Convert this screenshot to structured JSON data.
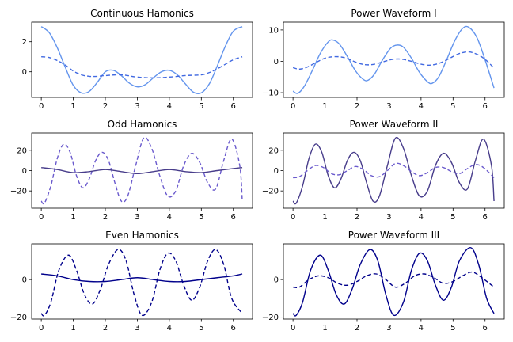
{
  "chart_data": [
    {
      "type": "line",
      "title": "Continuous Hamonics",
      "xlim": [
        -0.3,
        6.6
      ],
      "ylim": [
        -1.7,
        3.3
      ],
      "xticks": [
        0,
        1,
        2,
        3,
        4,
        5,
        6
      ],
      "yticks": [
        0,
        2
      ],
      "series": [
        {
          "style": "solid",
          "color": "#6495ed",
          "x": [
            0,
            0.25,
            0.5,
            0.75,
            1.0,
            1.25,
            1.5,
            1.75,
            2.0,
            2.25,
            2.5,
            2.75,
            3.0,
            3.25,
            3.5,
            3.75,
            4.0,
            4.25,
            4.5,
            4.75,
            5.0,
            5.25,
            5.5,
            5.75,
            6.0,
            6.28
          ],
          "y": [
            3.0,
            2.6,
            1.6,
            0.3,
            -0.9,
            -1.4,
            -1.3,
            -0.7,
            0.0,
            0.1,
            -0.25,
            -0.75,
            -1.0,
            -0.85,
            -0.4,
            0.0,
            0.1,
            -0.2,
            -0.8,
            -1.35,
            -1.4,
            -0.8,
            0.4,
            1.7,
            2.7,
            3.0
          ]
        },
        {
          "style": "dashed",
          "color": "#4169e1",
          "x": [
            0,
            0.25,
            0.5,
            0.75,
            1.0,
            1.25,
            1.5,
            1.75,
            2.0,
            2.5,
            3.0,
            3.5,
            4.0,
            4.5,
            5.0,
            5.25,
            5.5,
            5.75,
            6.0,
            6.28
          ],
          "y": [
            1.0,
            0.95,
            0.75,
            0.45,
            0.05,
            -0.2,
            -0.3,
            -0.3,
            -0.25,
            -0.2,
            -0.35,
            -0.4,
            -0.35,
            -0.25,
            -0.2,
            -0.05,
            0.2,
            0.5,
            0.8,
            1.0
          ]
        }
      ]
    },
    {
      "type": "line",
      "title": "Power Waveform I",
      "xlim": [
        -0.3,
        6.6
      ],
      "ylim": [
        -11.5,
        12.5
      ],
      "xticks": [
        0,
        1,
        2,
        3,
        4,
        5,
        6
      ],
      "yticks": [
        -10,
        0,
        10
      ],
      "series": [
        {
          "style": "solid",
          "color": "#6495ed",
          "x": [
            0,
            0.15,
            0.35,
            0.6,
            0.85,
            1.1,
            1.25,
            1.45,
            1.7,
            1.95,
            2.2,
            2.35,
            2.55,
            2.8,
            3.05,
            3.25,
            3.45,
            3.7,
            3.95,
            4.2,
            4.35,
            4.55,
            4.8,
            5.05,
            5.3,
            5.5,
            5.75,
            6.0,
            6.28
          ],
          "y": [
            -9.5,
            -10.2,
            -8.0,
            -3.0,
            2.5,
            6.2,
            6.8,
            5.5,
            1.5,
            -3.0,
            -5.8,
            -6.0,
            -4.0,
            0.5,
            4.2,
            5.2,
            4.5,
            1.0,
            -3.5,
            -6.5,
            -7.0,
            -5.0,
            0.5,
            6.5,
            10.5,
            10.8,
            7.5,
            0.5,
            -8.5
          ]
        },
        {
          "style": "dashed",
          "color": "#4169e1",
          "x": [
            0,
            0.2,
            0.45,
            0.75,
            1.0,
            1.3,
            1.6,
            1.9,
            2.2,
            2.5,
            2.8,
            3.1,
            3.4,
            3.7,
            4.0,
            4.3,
            4.6,
            4.9,
            5.2,
            5.5,
            5.8,
            6.05,
            6.28
          ],
          "y": [
            -2.0,
            -2.5,
            -1.8,
            -0.2,
            1.0,
            1.5,
            1.2,
            0.0,
            -1.0,
            -1.0,
            -0.2,
            0.6,
            0.7,
            0.0,
            -0.9,
            -1.2,
            -0.5,
            1.0,
            2.5,
            3.0,
            2.0,
            0.2,
            -2.2
          ]
        }
      ]
    },
    {
      "type": "line",
      "title": "Odd Hamonics",
      "xlim": [
        -0.3,
        6.6
      ],
      "ylim": [
        -37,
        37
      ],
      "xticks": [
        0,
        1,
        2,
        3,
        4,
        5,
        6
      ],
      "yticks": [
        -20,
        0,
        20
      ],
      "series": [
        {
          "style": "dashed",
          "color": "#6a5acd",
          "x": [
            0,
            0.1,
            0.3,
            0.5,
            0.7,
            0.9,
            1.1,
            1.3,
            1.5,
            1.7,
            1.9,
            2.1,
            2.3,
            2.5,
            2.7,
            2.95,
            3.2,
            3.45,
            3.7,
            3.95,
            4.2,
            4.45,
            4.7,
            4.95,
            5.2,
            5.45,
            5.7,
            5.95,
            6.2,
            6.28
          ],
          "y": [
            -30,
            -32,
            -15,
            12,
            26,
            18,
            -5,
            -17,
            -8,
            10,
            18,
            10,
            -12,
            -30,
            -25,
            5,
            32,
            22,
            -5,
            -25,
            -20,
            5,
            17,
            8,
            -12,
            -18,
            10,
            31,
            5,
            -30
          ]
        },
        {
          "style": "solid",
          "color": "#483d8b",
          "x": [
            0,
            0.5,
            1.0,
            1.5,
            2.0,
            2.5,
            3.0,
            3.5,
            4.0,
            4.5,
            5.0,
            5.5,
            6.0,
            6.28
          ],
          "y": [
            3,
            1,
            -2,
            -1,
            1,
            -1,
            -3,
            -1,
            1,
            -1,
            -2,
            0,
            2,
            3
          ]
        }
      ]
    },
    {
      "type": "line",
      "title": "Power Waveform II",
      "xlim": [
        -0.3,
        6.6
      ],
      "ylim": [
        -37,
        37
      ],
      "xticks": [
        0,
        1,
        2,
        3,
        4,
        5,
        6
      ],
      "yticks": [
        -20,
        0,
        20
      ],
      "series": [
        {
          "style": "solid",
          "color": "#483d8b",
          "x": [
            0,
            0.1,
            0.3,
            0.5,
            0.7,
            0.9,
            1.1,
            1.3,
            1.5,
            1.7,
            1.9,
            2.1,
            2.3,
            2.5,
            2.7,
            2.95,
            3.2,
            3.45,
            3.7,
            3.95,
            4.2,
            4.45,
            4.7,
            4.95,
            5.2,
            5.45,
            5.7,
            5.95,
            6.2,
            6.28
          ],
          "y": [
            -30,
            -32,
            -15,
            12,
            26,
            18,
            -5,
            -17,
            -8,
            10,
            18,
            10,
            -12,
            -30,
            -25,
            5,
            32,
            22,
            -5,
            -25,
            -20,
            5,
            17,
            8,
            -12,
            -18,
            10,
            31,
            5,
            -30
          ]
        },
        {
          "style": "dashed",
          "color": "#6a5acd",
          "x": [
            0,
            0.2,
            0.45,
            0.7,
            0.95,
            1.2,
            1.45,
            1.7,
            1.95,
            2.2,
            2.45,
            2.7,
            2.95,
            3.2,
            3.45,
            3.7,
            3.95,
            4.2,
            4.45,
            4.7,
            4.95,
            5.2,
            5.45,
            5.7,
            5.95,
            6.28
          ],
          "y": [
            -7,
            -6,
            0,
            5,
            3,
            -3,
            -4,
            0,
            4,
            1,
            -5,
            -6,
            0,
            7,
            5,
            -1,
            -5,
            -2,
            3,
            3,
            -1,
            -3,
            2,
            6,
            3,
            -7
          ]
        }
      ]
    },
    {
      "type": "line",
      "title": "Even Hamonics",
      "xlim": [
        -0.3,
        6.6
      ],
      "ylim": [
        -21,
        19
      ],
      "xticks": [
        0,
        1,
        2,
        3,
        4,
        5,
        6
      ],
      "yticks": [
        -20,
        0
      ],
      "series": [
        {
          "style": "dashed",
          "color": "#00008b",
          "x": [
            0,
            0.1,
            0.3,
            0.55,
            0.85,
            1.1,
            1.35,
            1.6,
            1.85,
            2.1,
            2.4,
            2.65,
            2.9,
            3.15,
            3.45,
            3.7,
            3.95,
            4.2,
            4.45,
            4.7,
            4.95,
            5.2,
            5.45,
            5.7,
            5.95,
            6.28
          ],
          "y": [
            -18,
            -19,
            -12,
            5,
            13,
            5,
            -8,
            -13,
            -5,
            8,
            16,
            10,
            -8,
            -19,
            -12,
            5,
            14,
            10,
            -3,
            -11,
            -4,
            10,
            16,
            8,
            -10,
            -18
          ]
        },
        {
          "style": "solid",
          "color": "#00008b",
          "x": [
            0,
            0.5,
            1.0,
            1.5,
            2.0,
            2.5,
            3.0,
            3.5,
            4.0,
            4.5,
            5.0,
            5.5,
            6.0,
            6.28
          ],
          "y": [
            3,
            2,
            0,
            -1,
            -1,
            0,
            1,
            0,
            -1,
            -1,
            0,
            1,
            2,
            3
          ]
        }
      ]
    },
    {
      "type": "line",
      "title": "Power Waveform III",
      "xlim": [
        -0.3,
        6.6
      ],
      "ylim": [
        -21,
        19
      ],
      "xticks": [
        0,
        1,
        2,
        3,
        4,
        5,
        6
      ],
      "yticks": [
        -20,
        0
      ],
      "series": [
        {
          "style": "solid",
          "color": "#00008b",
          "x": [
            0,
            0.1,
            0.3,
            0.55,
            0.85,
            1.1,
            1.35,
            1.6,
            1.85,
            2.1,
            2.4,
            2.65,
            2.9,
            3.15,
            3.45,
            3.7,
            3.95,
            4.2,
            4.45,
            4.7,
            4.95,
            5.2,
            5.55,
            5.8,
            6.05,
            6.28
          ],
          "y": [
            -18,
            -19,
            -12,
            5,
            13,
            5,
            -8,
            -13,
            -5,
            8,
            16,
            10,
            -8,
            -19,
            -12,
            5,
            14,
            10,
            -3,
            -11,
            -4,
            10,
            17,
            8,
            -10,
            -18
          ]
        },
        {
          "style": "dashed",
          "color": "#00008b",
          "x": [
            0,
            0.2,
            0.5,
            0.8,
            1.1,
            1.4,
            1.7,
            2.0,
            2.3,
            2.6,
            2.9,
            3.2,
            3.5,
            3.8,
            4.1,
            4.4,
            4.7,
            5.0,
            5.3,
            5.6,
            5.9,
            6.28
          ],
          "y": [
            -4,
            -4,
            0,
            2,
            1,
            -2,
            -3,
            -1,
            2,
            3,
            0,
            -4,
            -2,
            2,
            3,
            1,
            -2,
            -1,
            2,
            4,
            1,
            -4
          ]
        }
      ]
    }
  ]
}
